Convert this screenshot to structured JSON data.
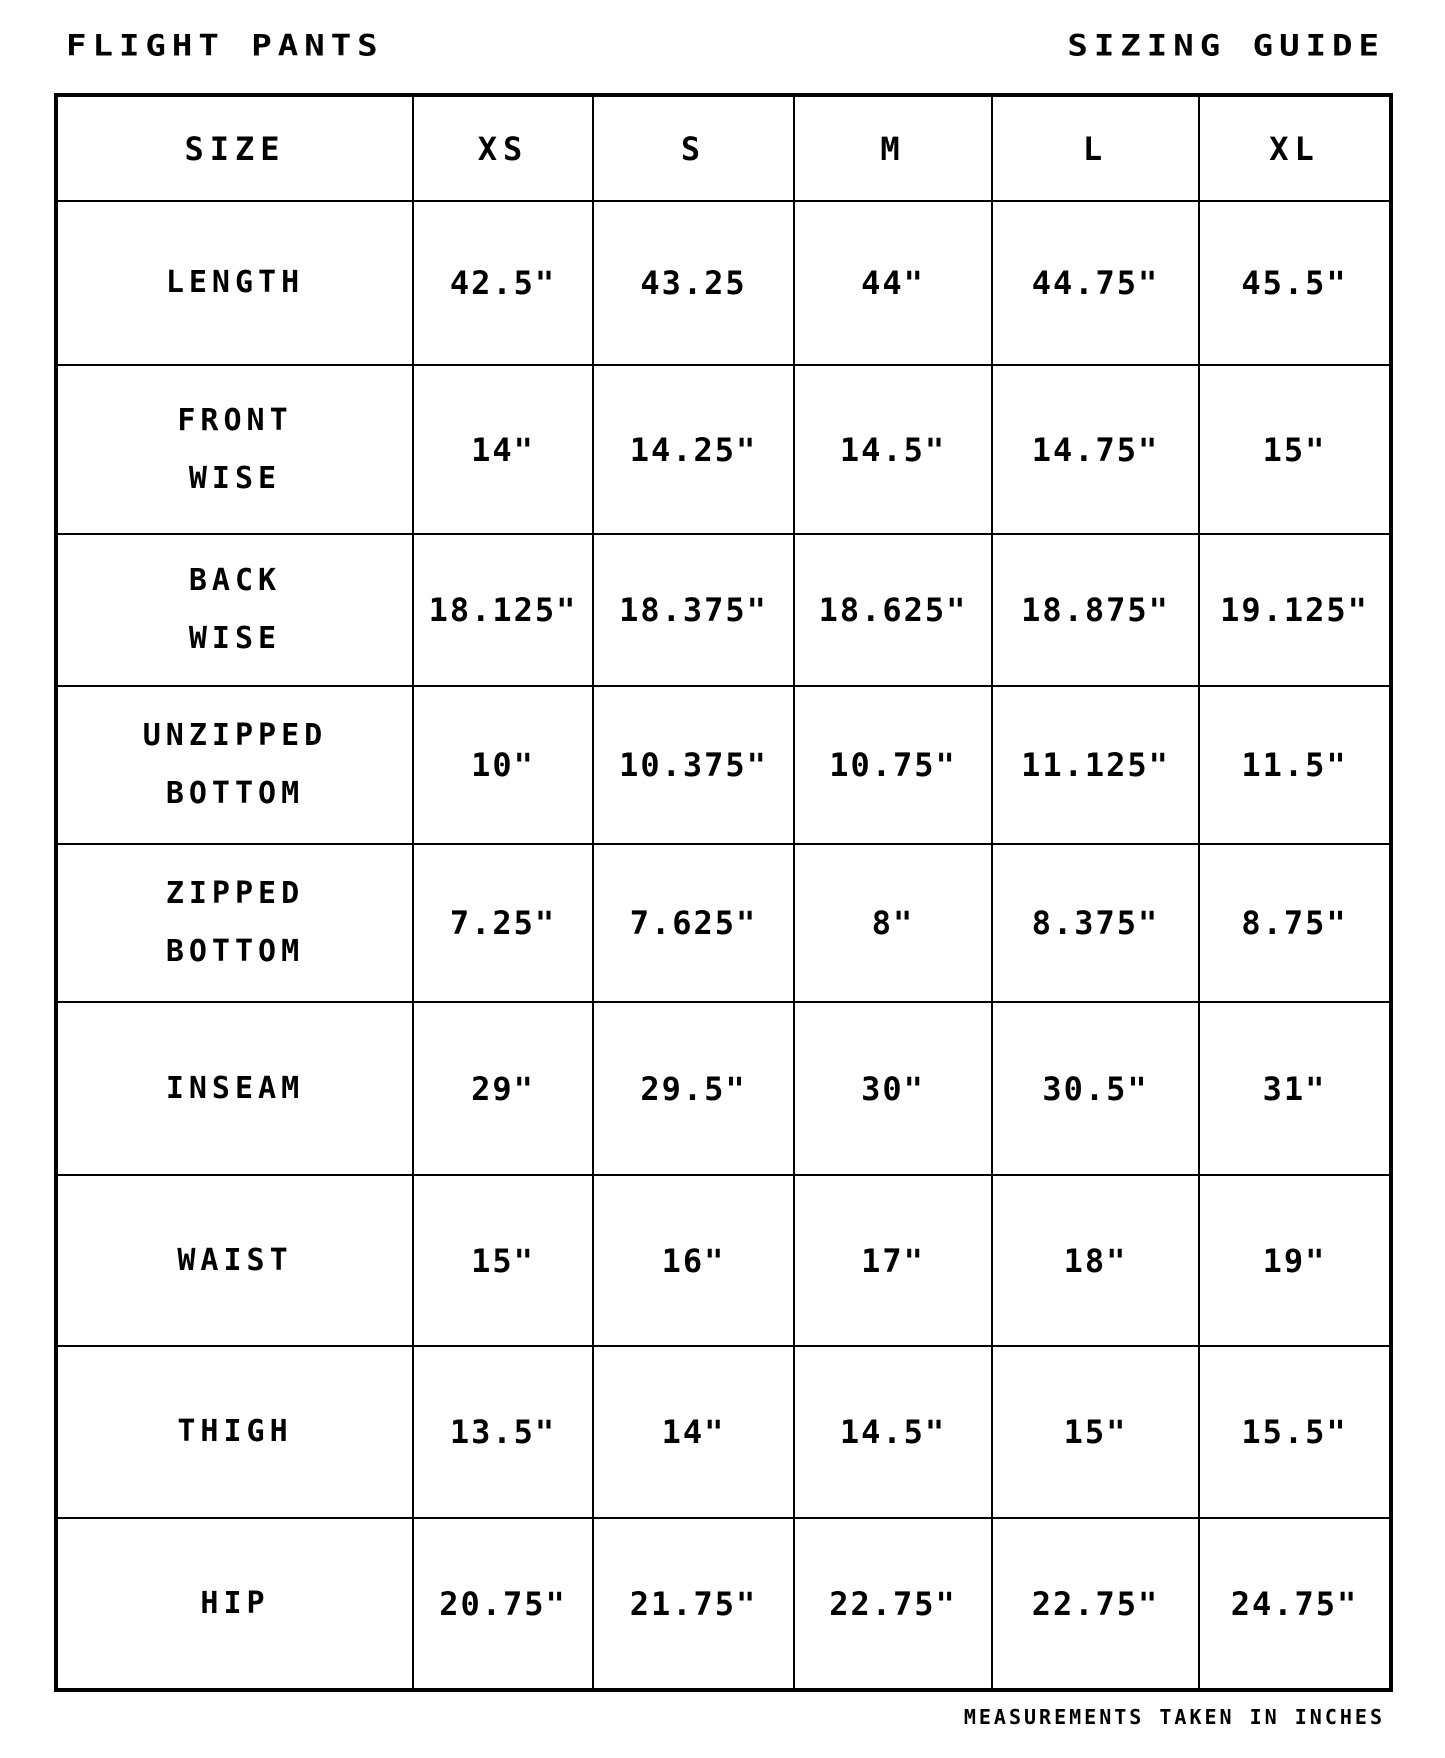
{
  "header": {
    "title_left": "Flight Pants",
    "title_right": "Sizing Guide"
  },
  "table": {
    "corner_label": "SIZE",
    "sizes": [
      "XS",
      "S",
      "M",
      "L",
      "XL"
    ],
    "rows": [
      {
        "label": [
          "Length"
        ],
        "values": [
          "42.5\"",
          "43.25",
          "44\"",
          "44.75\"",
          "45.5\""
        ]
      },
      {
        "label": [
          "Front",
          "Wise"
        ],
        "values": [
          "14\"",
          "14.25\"",
          "14.5\"",
          "14.75\"",
          "15\""
        ]
      },
      {
        "label": [
          "Back",
          "Wise"
        ],
        "values": [
          "18.125\"",
          "18.375\"",
          "18.625\"",
          "18.875\"",
          "19.125\""
        ]
      },
      {
        "label": [
          "Unzipped",
          "Bottom"
        ],
        "values": [
          "10\"",
          "10.375\"",
          "10.75\"",
          "11.125\"",
          "11.5\""
        ]
      },
      {
        "label": [
          "Zipped",
          "Bottom"
        ],
        "values": [
          "7.25\"",
          "7.625\"",
          "8\"",
          "8.375\"",
          "8.75\""
        ]
      },
      {
        "label": [
          "Inseam"
        ],
        "values": [
          "29\"",
          "29.5\"",
          "30\"",
          "30.5\"",
          "31\""
        ]
      },
      {
        "label": [
          "Waist"
        ],
        "values": [
          "15\"",
          "16\"",
          "17\"",
          "18\"",
          "19\""
        ]
      },
      {
        "label": [
          "Thigh"
        ],
        "values": [
          "13.5\"",
          "14\"",
          "14.5\"",
          "15\"",
          "15.5\""
        ]
      },
      {
        "label": [
          "Hip"
        ],
        "values": [
          "20.75\"",
          "21.75\"",
          "22.75\"",
          "22.75\"",
          "24.75\""
        ]
      }
    ]
  },
  "footer": {
    "note": "Measurements taken in inches"
  }
}
